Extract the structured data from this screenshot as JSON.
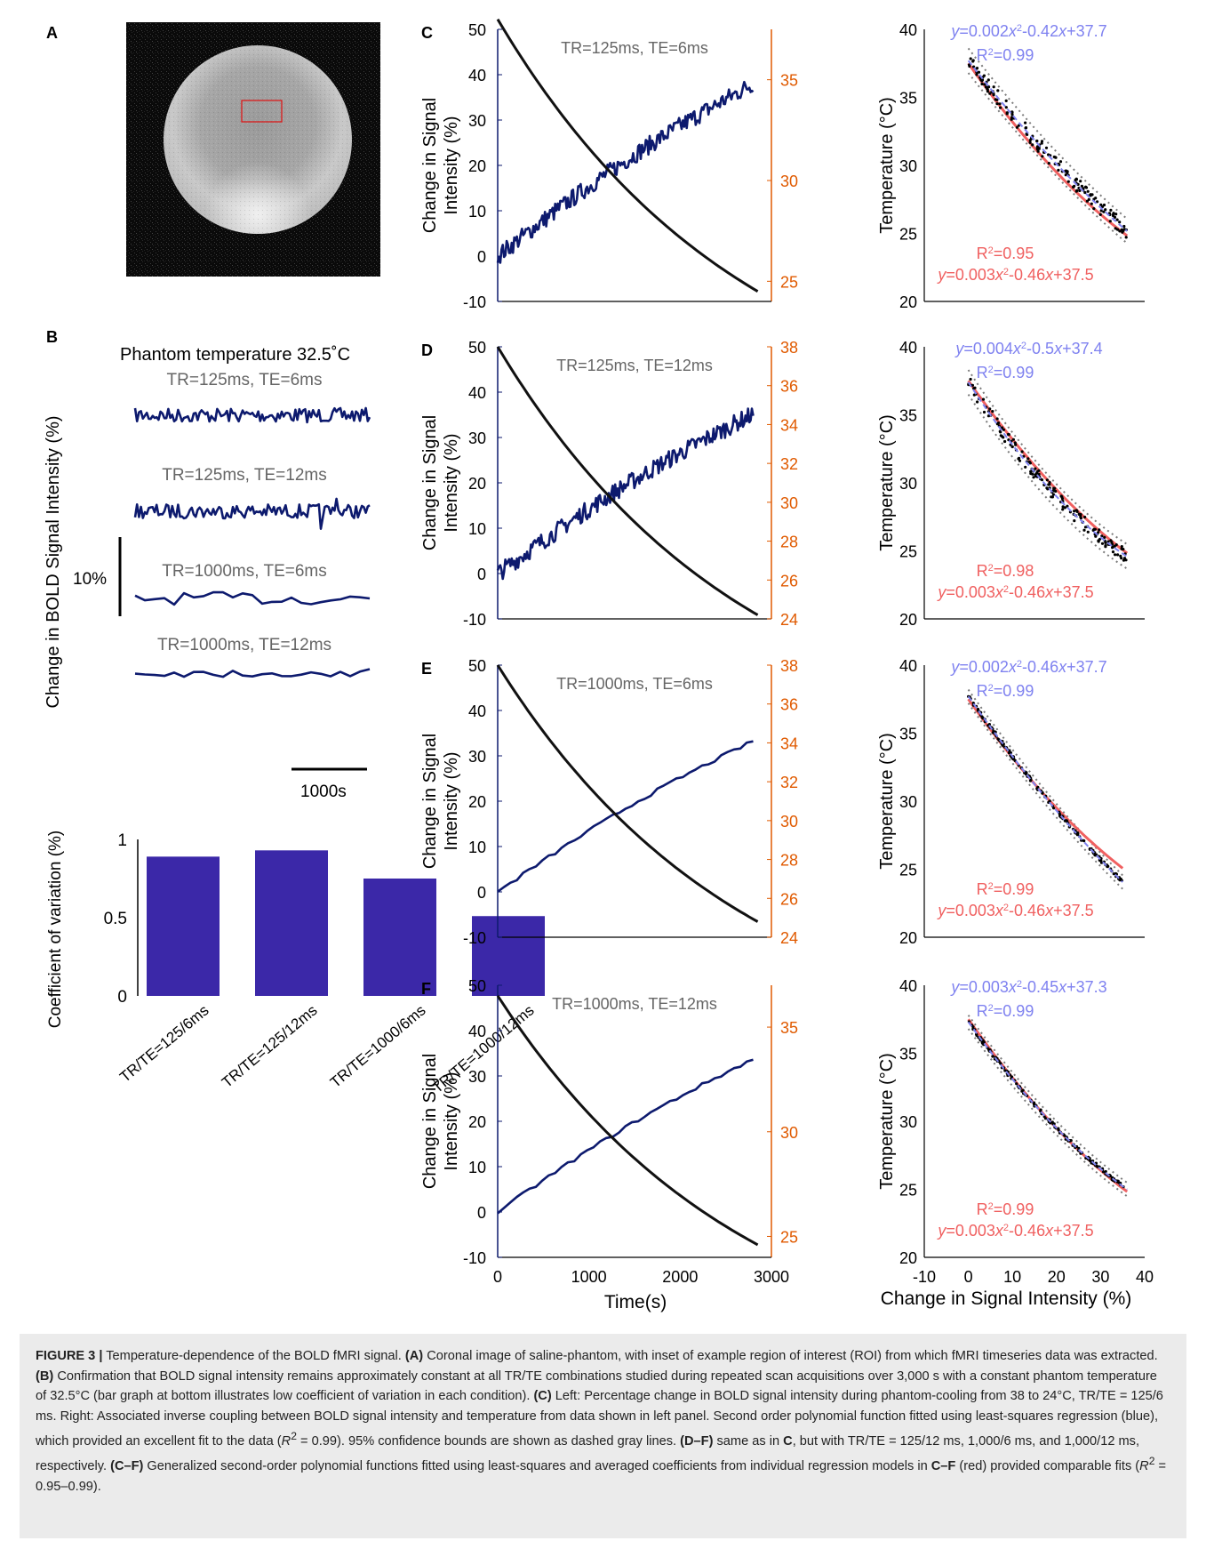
{
  "colors": {
    "blue": "#0d1a6e",
    "black": "#111111",
    "orange": "#e05a00",
    "bar": "#3b28a8",
    "fit_blue": "#7f82f0",
    "fit_red": "#f06060",
    "ci": "#7a7a7a",
    "ghost_text": "#666666"
  },
  "figure": {
    "panel_a": {
      "letter": "A"
    },
    "panel_b": {
      "letter": "B",
      "header": "Phantom temperature 32.5˚C",
      "ylabel": "Change in BOLD Signal Intensity (%)",
      "scale_y_label": "10%",
      "scale_x_label": "1000s",
      "traces": [
        {
          "label": "TR=125ms, TE=6ms",
          "sampling": "dense"
        },
        {
          "label": "TR=125ms, TE=12ms",
          "sampling": "dense"
        },
        {
          "label": "TR=1000ms, TE=6ms",
          "sampling": "sparse"
        },
        {
          "label": "TR=1000ms, TE=12ms",
          "sampling": "sparse"
        }
      ]
    },
    "panel_b_bar": {
      "chart_data": {
        "type": "bar",
        "categories": [
          "TR/TE=125/6ms",
          "TR/TE=125/12ms",
          "TR/TE=1000/6ms",
          "TR/TE=1000/12ms"
        ],
        "values": [
          0.89,
          0.93,
          0.75,
          0.51
        ],
        "ylabel": "Coefficient of variation (%)",
        "ylim": [
          0,
          1
        ],
        "yticks": [
          "0",
          "0.5",
          "1"
        ]
      }
    },
    "left_axes": {
      "ylabel_line1": "Change in Signal",
      "ylabel_line2": "Intensity (%)",
      "xlabel": "Time(s)",
      "xticks": [
        "0",
        "1000",
        "2000",
        "3000"
      ],
      "yticks": [
        "-10",
        "0",
        "10",
        "20",
        "30",
        "40",
        "50"
      ]
    },
    "right_axes": {
      "ylabel": "Temperature (°C)",
      "xlabel": "Change in Signal Intensity (%)",
      "xticks": [
        "-10",
        "0",
        "10",
        "20",
        "30",
        "40"
      ],
      "yticks": [
        "20",
        "25",
        "30",
        "35",
        "40"
      ]
    },
    "rows": [
      {
        "letter": "C",
        "title": "TR=125ms, TE=6ms",
        "chart_data": {
          "type": "line",
          "x_range": [
            0,
            3000
          ],
          "ylim": [
            -10,
            50
          ],
          "temp_ylim": [
            24,
            37.5
          ],
          "temp_ticks": [
            "25",
            "30",
            "35"
          ],
          "temp_tick_values": [
            25,
            30,
            35
          ],
          "signal_end": 40,
          "signal_style": "noisy",
          "temperature_start": 38,
          "temperature_end": 24.5
        }
      },
      {
        "letter": "D",
        "title": "TR=125ms, TE=12ms",
        "chart_data": {
          "type": "line",
          "x_range": [
            0,
            3000
          ],
          "ylim": [
            -10,
            50
          ],
          "temp_ylim": [
            24,
            38
          ],
          "temp_ticks": [
            "24",
            "26",
            "28",
            "30",
            "32",
            "34",
            "36",
            "38"
          ],
          "temp_tick_values": [
            24,
            26,
            28,
            30,
            32,
            34,
            36,
            38
          ],
          "signal_end": 37,
          "signal_style": "noisy",
          "temperature_start": 38,
          "temperature_end": 24.2
        }
      },
      {
        "letter": "E",
        "title": "TR=1000ms, TE=6ms",
        "chart_data": {
          "type": "line",
          "x_range": [
            0,
            3000
          ],
          "ylim": [
            -10,
            50
          ],
          "temp_ylim": [
            24,
            38
          ],
          "temp_ticks": [
            "24",
            "26",
            "28",
            "30",
            "32",
            "34",
            "36",
            "38"
          ],
          "temp_tick_values": [
            24,
            26,
            28,
            30,
            32,
            34,
            36,
            38
          ],
          "signal_end": 35,
          "signal_style": "smooth",
          "temperature_start": 38,
          "temperature_end": 24.8
        }
      },
      {
        "letter": "F",
        "title": "TR=1000ms, TE=12ms",
        "chart_data": {
          "type": "line",
          "x_range": [
            0,
            3000
          ],
          "ylim": [
            -10,
            50
          ],
          "temp_ylim": [
            24,
            37
          ],
          "temp_ticks": [
            "25",
            "30",
            "35"
          ],
          "temp_tick_values": [
            25,
            30,
            35
          ],
          "signal_end": 35.5,
          "signal_style": "smooth",
          "temperature_start": 36.5,
          "temperature_end": 24.6
        }
      }
    ],
    "fits": [
      {
        "blue_eq_coef1": "0.002",
        "blue_eq_mid": "-0.42",
        "blue_eq_const": "+37.7",
        "blue_r2": "0.99",
        "red_r2": "0.95",
        "red_eq_coef1": "0.003",
        "red_eq_mid": "-0.46",
        "red_eq_const": "+37.5",
        "chart_data": {
          "type": "scatter",
          "xlim": [
            -10,
            40
          ],
          "ylim": [
            20,
            40
          ],
          "blue_fit": [
            0.002,
            -0.42,
            37.7
          ],
          "red_fit": [
            0.003,
            -0.46,
            37.5
          ],
          "x_range": [
            0,
            36
          ],
          "scatter_spread": 0.55,
          "ci_halfwidth": 0.9
        }
      },
      {
        "blue_eq_coef1": "0.004",
        "blue_eq_mid": "-0.5",
        "blue_eq_const": "+37.4",
        "blue_r2": "0.99",
        "red_r2": "0.98",
        "red_eq_coef1": "0.003",
        "red_eq_mid": "-0.46",
        "red_eq_const": "+37.5",
        "chart_data": {
          "type": "scatter",
          "xlim": [
            -10,
            40
          ],
          "ylim": [
            20,
            40
          ],
          "blue_fit": [
            0.004,
            -0.5,
            37.4
          ],
          "red_fit": [
            0.003,
            -0.46,
            37.5
          ],
          "x_range": [
            0,
            36
          ],
          "scatter_spread": 0.5,
          "ci_halfwidth": 0.9
        }
      },
      {
        "blue_eq_coef1": "0.002",
        "blue_eq_mid": "-0.46",
        "blue_eq_const": "+37.7",
        "blue_r2": "0.99",
        "red_r2": "0.99",
        "red_eq_coef1": "0.003",
        "red_eq_mid": "-0.46",
        "red_eq_const": "+37.5",
        "chart_data": {
          "type": "scatter",
          "xlim": [
            -10,
            40
          ],
          "ylim": [
            20,
            40
          ],
          "blue_fit": [
            0.002,
            -0.46,
            37.7
          ],
          "red_fit": [
            0.003,
            -0.46,
            37.5
          ],
          "x_range": [
            0,
            35
          ],
          "scatter_spread": 0.15,
          "ci_halfwidth": 0.5
        }
      },
      {
        "blue_eq_coef1": "0.003",
        "blue_eq_mid": "-0.45",
        "blue_eq_const": "+37.3",
        "blue_r2": "0.99",
        "red_r2": "0.99",
        "red_eq_coef1": "0.003",
        "red_eq_mid": "-0.46",
        "red_eq_const": "+37.5",
        "chart_data": {
          "type": "scatter",
          "xlim": [
            -10,
            40
          ],
          "ylim": [
            20,
            40
          ],
          "blue_fit": [
            0.003,
            -0.45,
            37.3
          ],
          "red_fit": [
            0.003,
            -0.46,
            37.5
          ],
          "x_range": [
            0,
            36
          ],
          "scatter_spread": 0.15,
          "ci_halfwidth": 0.5
        }
      }
    ]
  },
  "caption": {
    "figure_label": "FIGURE 3 |",
    "title": " Temperature-dependence of the BOLD fMRI signal. ",
    "a_label": "(A)",
    "a_text": " Coronal image of saline-phantom, with inset of example region of interest (ROI) from which fMRI timeseries data was extracted. ",
    "b_label": "(B)",
    "b_text": " Confirmation that BOLD signal intensity remains approximately constant at all TR/TE combinations studied during repeated scan acquisitions over 3,000 s with a constant phantom temperature of 32.5°C (bar graph at bottom illustrates low coefficient of variation in each condition). ",
    "c_label": "(C)",
    "c_text": " Left: Percentage change in BOLD signal intensity during phantom-cooling from 38 to 24°C, TR/TE = 125/6 ms. Right: Associated inverse coupling between BOLD signal intensity and temperature from data shown in left panel. Second order polynomial function fitted using least-squares regression (blue), which provided an excellent fit to the data (",
    "r2_symbol": "R",
    "c_text2": " = 0.99). 95% confidence bounds are shown as dashed gray lines. ",
    "df_label": "(D–F)",
    "df_text": " same as in ",
    "c_ref": "C",
    "df_text2": ", but with TR/TE = 125/12 ms, 1,000/6 ms, and 1,000/12 ms, respectively. ",
    "cf_label": "(C–F)",
    "cf_text": " Generalized second-order polynomial functions fitted using least-squares and averaged coefficients from individual regression models in ",
    "cf_ref": "C–F",
    "cf_text2": " (red) provided comparable fits (",
    "cf_text3": " = 0.95–0.99)."
  }
}
